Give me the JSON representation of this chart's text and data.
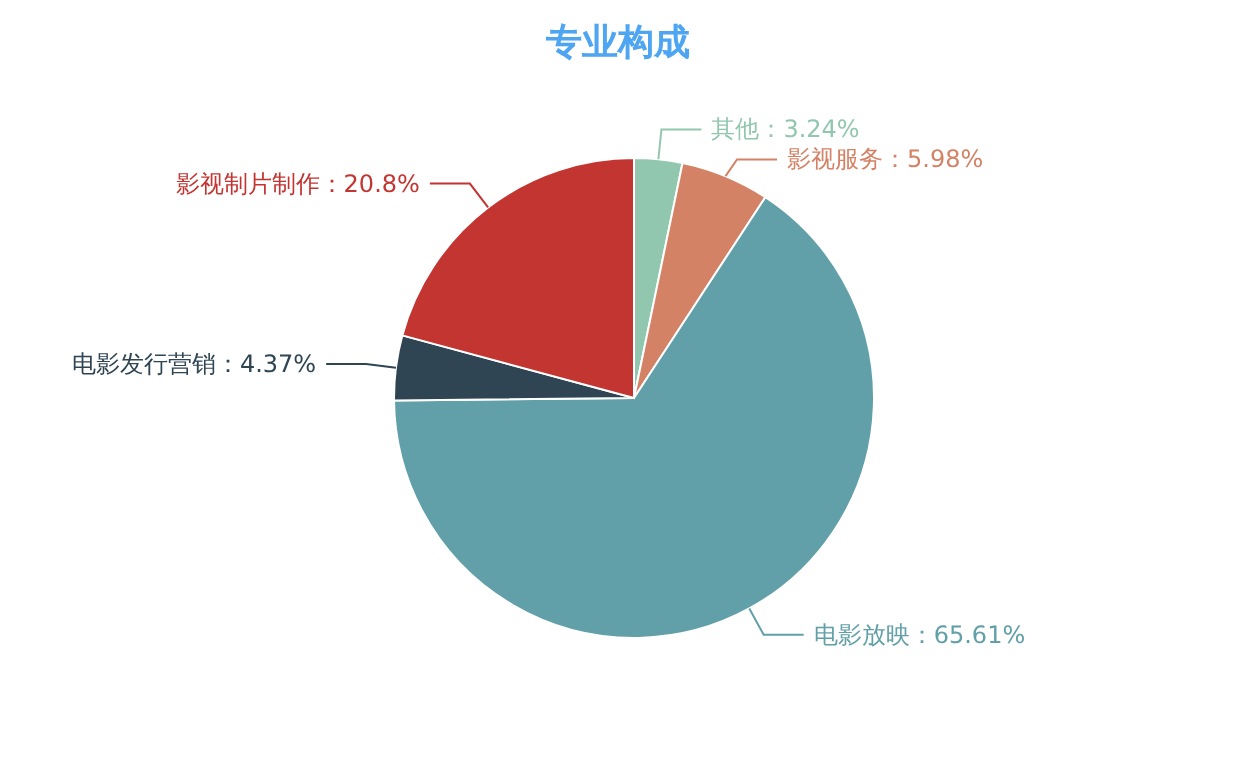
{
  "chart_data": {
    "type": "pie",
    "title": "专业构成",
    "categories": [
      "其他",
      "影视服务",
      "电影放映",
      "电影发行营销",
      "影视制片制作"
    ],
    "values": [
      3.24,
      5.98,
      65.61,
      4.37,
      20.8
    ],
    "value_labels": [
      "3.24%",
      "5.98%",
      "65.61%",
      "4.37%",
      "20.8%"
    ],
    "colors": [
      "#91c7ae",
      "#d48265",
      "#61a0a8",
      "#2f4554",
      "#c23531"
    ]
  }
}
